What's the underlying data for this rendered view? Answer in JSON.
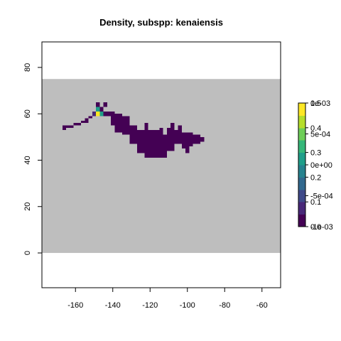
{
  "chart_data": {
    "type": "heatmap",
    "title": "Density, subspp: kenaiensis",
    "xlabel": "",
    "ylabel": "",
    "xlim": [
      -178,
      -50
    ],
    "ylim": [
      -15,
      91
    ],
    "x_ticks": [
      -160,
      -140,
      -120,
      -100,
      -80,
      -60
    ],
    "y_ticks": [
      0,
      20,
      40,
      60,
      80
    ],
    "background_extent": {
      "x": [
        -178,
        -50
      ],
      "y": [
        0,
        75
      ]
    },
    "background_color": "#bebebe",
    "cell_size": 2,
    "colorbar": {
      "scale_a_labels": [
        "0.0",
        "0.1",
        "0.2",
        "0.3",
        "0.4",
        "0.5"
      ],
      "scale_a_range": [
        0,
        0.5
      ],
      "scale_b_labels": [
        "-1e-03",
        "-5e-04",
        "0e+00",
        "5e-04",
        "1e-03"
      ],
      "scale_b_range": [
        -0.001,
        0.001
      ],
      "colors": [
        "#440154",
        "#482878",
        "#3e4989",
        "#31688e",
        "#26828e",
        "#1f9e89",
        "#35b779",
        "#6ece58",
        "#b5de2b",
        "#fde725"
      ]
    },
    "cells": [
      {
        "x": -167,
        "y": 53,
        "w": 2,
        "h": 2,
        "value": 0.0
      },
      {
        "x": -165,
        "y": 54,
        "w": 4,
        "h": 1,
        "value": 0.0
      },
      {
        "x": -161,
        "y": 55,
        "w": 4,
        "h": 1,
        "value": 0.0
      },
      {
        "x": -157,
        "y": 56,
        "w": 4,
        "h": 1,
        "value": 0.0
      },
      {
        "x": -155,
        "y": 57,
        "w": 2,
        "h": 1,
        "value": 0.0
      },
      {
        "x": -153,
        "y": 58,
        "w": 2,
        "h": 1,
        "value": 0.0
      },
      {
        "x": -151,
        "y": 59,
        "w": 2,
        "h": 2,
        "value": 0.05
      },
      {
        "x": -149,
        "y": 59,
        "w": 2,
        "h": 2,
        "value": 0.5
      },
      {
        "x": -149,
        "y": 61,
        "w": 2,
        "h": 2,
        "value": 0.3
      },
      {
        "x": -147,
        "y": 59,
        "w": 2,
        "h": 2,
        "value": 0.25
      },
      {
        "x": -147,
        "y": 61,
        "w": 2,
        "h": 2,
        "value": 0.0
      },
      {
        "x": -149,
        "y": 63,
        "w": 2,
        "h": 2,
        "value": 0.0
      },
      {
        "x": -145,
        "y": 63,
        "w": 2,
        "h": 2,
        "value": 0.0
      },
      {
        "x": -145,
        "y": 59,
        "w": 4,
        "h": 2,
        "value": 0.0
      },
      {
        "x": -141,
        "y": 55,
        "w": 2,
        "h": 6,
        "value": 0.0
      },
      {
        "x": -139,
        "y": 52,
        "w": 4,
        "h": 8,
        "value": 0.0
      },
      {
        "x": -135,
        "y": 51,
        "w": 4,
        "h": 8,
        "value": 0.0
      },
      {
        "x": -131,
        "y": 47,
        "w": 4,
        "h": 8,
        "value": 0.0
      },
      {
        "x": -127,
        "y": 43,
        "w": 4,
        "h": 10,
        "value": 0.0
      },
      {
        "x": -123,
        "y": 41,
        "w": 8,
        "h": 12,
        "value": 0.0
      },
      {
        "x": -123,
        "y": 53,
        "w": 2,
        "h": 3,
        "value": 0.0
      },
      {
        "x": -115,
        "y": 41,
        "w": 4,
        "h": 10,
        "value": 0.0
      },
      {
        "x": -115,
        "y": 51,
        "w": 2,
        "h": 3,
        "value": 0.0
      },
      {
        "x": -111,
        "y": 44,
        "w": 4,
        "h": 10,
        "value": 0.0
      },
      {
        "x": -109,
        "y": 54,
        "w": 2,
        "h": 2,
        "value": 0.0
      },
      {
        "x": -107,
        "y": 47,
        "w": 4,
        "h": 6,
        "value": 0.0
      },
      {
        "x": -105,
        "y": 53,
        "w": 2,
        "h": 2,
        "value": 0.0
      },
      {
        "x": -103,
        "y": 45,
        "w": 4,
        "h": 7,
        "value": 0.0
      },
      {
        "x": -99,
        "y": 46,
        "w": 2,
        "h": 6,
        "value": 0.0
      },
      {
        "x": -97,
        "y": 47,
        "w": 4,
        "h": 4,
        "value": 0.0
      },
      {
        "x": -93,
        "y": 48,
        "w": 2,
        "h": 2,
        "value": 0.0
      },
      {
        "x": -101,
        "y": 43,
        "w": 2,
        "h": 2,
        "value": 0.0
      }
    ]
  }
}
